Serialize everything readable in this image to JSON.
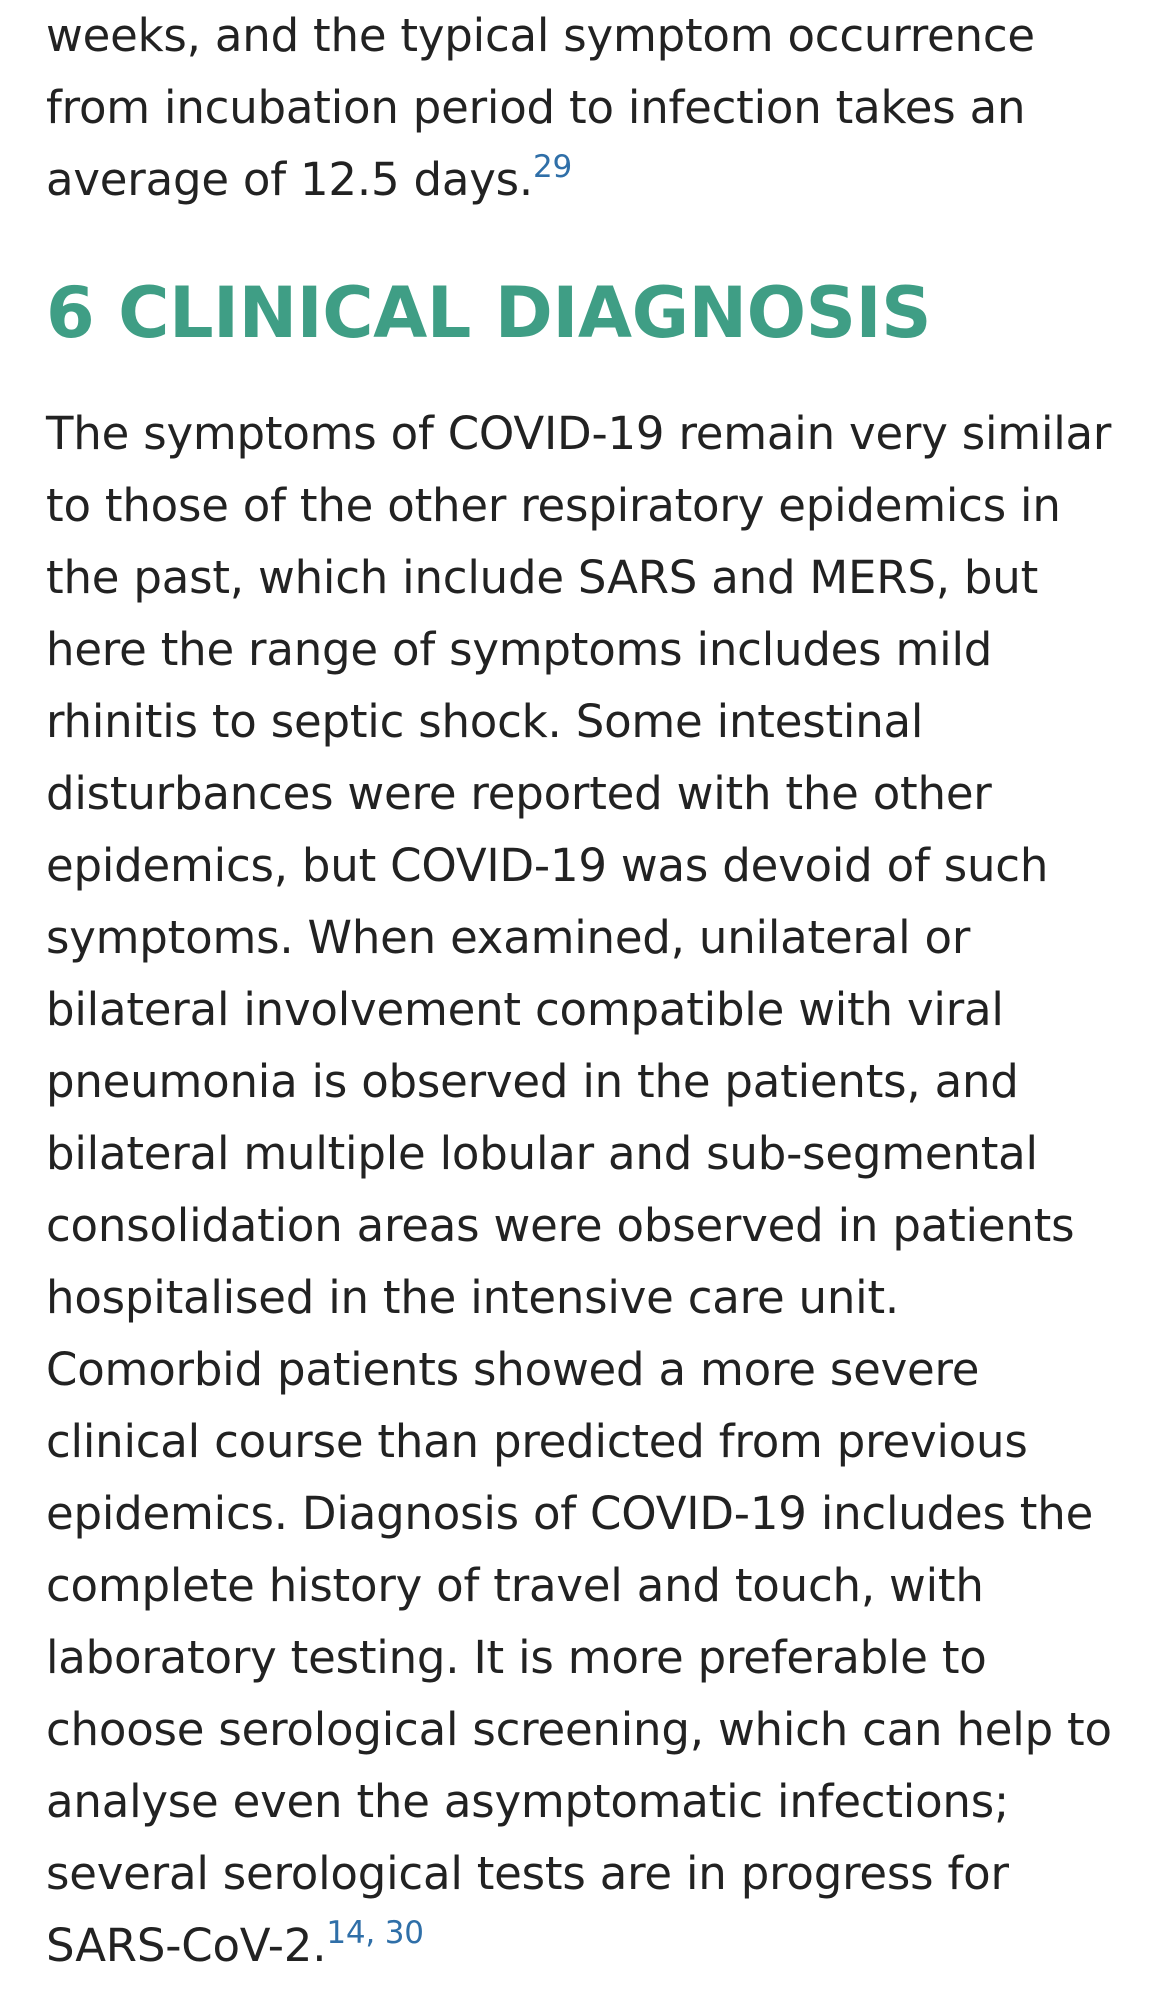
{
  "intro_paragraph": {
    "lines": [
      "weeks, and the typical symptom occurrence",
      "from incubation period to infection takes an",
      "average of 12.5 days."
    ],
    "refs": [
      "29"
    ]
  },
  "section": {
    "heading": "6 CLINICAL DIAGNOSIS",
    "paragraph": {
      "lines": [
        "The symptoms of COVID-19 remain very similar",
        "to those of the other respiratory epidemics in",
        "the past, which include SARS and MERS, but",
        "here the range of symptoms includes mild",
        "rhinitis to septic shock. Some intestinal",
        "disturbances were reported with the other",
        "epidemics, but COVID-19 was devoid of such",
        "symptoms. When examined, unilateral or",
        "bilateral involvement compatible with viral",
        "pneumonia is observed in the patients, and",
        "bilateral multiple lobular and sub-segmental",
        "consolidation areas were observed in patients",
        "hospitalised in the intensive care unit.",
        "Comorbid patients showed a more severe",
        "clinical course than predicted from previous",
        "epidemics. Diagnosis of COVID-19 includes the",
        "complete history of travel and touch, with",
        "laboratory testing. It is more preferable to",
        "choose serological screening, which can help to",
        "analyse even the asymptomatic infections;",
        "several serological tests are in progress for",
        "SARS-CoV-2."
      ],
      "refs": [
        "14",
        "30"
      ],
      "ref_separator": ", "
    }
  },
  "colors": {
    "heading": "#3f9e85",
    "body_text": "#222222",
    "reference_link": "#2f6fa8"
  }
}
